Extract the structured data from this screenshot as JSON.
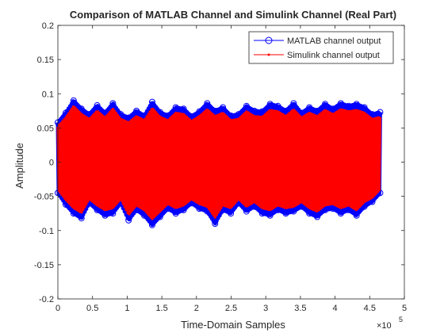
{
  "chart_data": {
    "type": "line",
    "title": "Comparison of MATLAB Channel and Simulink Channel (Real Part)",
    "xlabel": "Time-Domain Samples",
    "ylabel": "Amplitude",
    "x_exponent_label": "×10",
    "x_exponent_power": "5",
    "xlim": [
      0,
      5
    ],
    "ylim": [
      -0.2,
      0.2
    ],
    "x_data_range": [
      0,
      4.65
    ],
    "x_scale_factor": 100000,
    "xticks": [
      "0",
      "0.5",
      "1",
      "1.5",
      "2",
      "2.5",
      "3",
      "3.5",
      "4",
      "4.5",
      "5"
    ],
    "yticks": [
      "-0.2",
      "-0.15",
      "-0.1",
      "-0.05",
      "0",
      "0.05",
      "0.1",
      "0.15",
      "0.2"
    ],
    "grid": false,
    "legend_location": "top-right",
    "series": [
      {
        "name": "MATLAB channel output",
        "color": "#0000ff",
        "marker": "circle",
        "envelope_upper": [
          0.058,
          0.072,
          0.09,
          0.078,
          0.07,
          0.083,
          0.072,
          0.086,
          0.07,
          0.065,
          0.075,
          0.068,
          0.088,
          0.073,
          0.068,
          0.08,
          0.078,
          0.067,
          0.074,
          0.086,
          0.075,
          0.08,
          0.068,
          0.07,
          0.082,
          0.075,
          0.074,
          0.085,
          0.082,
          0.075,
          0.086,
          0.072,
          0.08,
          0.075,
          0.085,
          0.078,
          0.086,
          0.082,
          0.085,
          0.08,
          0.07,
          0.073
        ],
        "envelope_lower": [
          -0.045,
          -0.062,
          -0.075,
          -0.082,
          -0.06,
          -0.07,
          -0.078,
          -0.075,
          -0.06,
          -0.085,
          -0.07,
          -0.078,
          -0.092,
          -0.08,
          -0.068,
          -0.075,
          -0.07,
          -0.06,
          -0.068,
          -0.072,
          -0.09,
          -0.07,
          -0.075,
          -0.06,
          -0.072,
          -0.065,
          -0.075,
          -0.078,
          -0.07,
          -0.075,
          -0.072,
          -0.065,
          -0.075,
          -0.08,
          -0.07,
          -0.068,
          -0.075,
          -0.07,
          -0.078,
          -0.065,
          -0.058,
          -0.045
        ]
      },
      {
        "name": "Simulink channel output",
        "color": "#ff0000",
        "marker": "point",
        "envelope_upper": [
          0.052,
          0.065,
          0.082,
          0.07,
          0.063,
          0.075,
          0.065,
          0.078,
          0.063,
          0.058,
          0.067,
          0.061,
          0.079,
          0.066,
          0.061,
          0.072,
          0.07,
          0.06,
          0.067,
          0.077,
          0.067,
          0.072,
          0.061,
          0.063,
          0.074,
          0.067,
          0.066,
          0.076,
          0.074,
          0.067,
          0.077,
          0.065,
          0.072,
          0.067,
          0.076,
          0.07,
          0.077,
          0.074,
          0.076,
          0.072,
          0.063,
          0.066
        ],
        "envelope_lower": [
          -0.04,
          -0.055,
          -0.067,
          -0.074,
          -0.054,
          -0.063,
          -0.07,
          -0.067,
          -0.054,
          -0.077,
          -0.063,
          -0.07,
          -0.083,
          -0.072,
          -0.061,
          -0.067,
          -0.063,
          -0.054,
          -0.061,
          -0.065,
          -0.081,
          -0.063,
          -0.067,
          -0.054,
          -0.065,
          -0.058,
          -0.067,
          -0.07,
          -0.063,
          -0.067,
          -0.065,
          -0.058,
          -0.067,
          -0.072,
          -0.063,
          -0.061,
          -0.067,
          -0.063,
          -0.07,
          -0.058,
          -0.052,
          -0.04
        ]
      }
    ]
  }
}
